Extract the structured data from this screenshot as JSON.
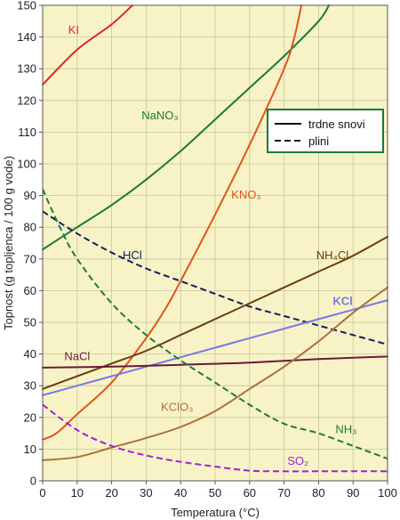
{
  "chart_data": {
    "type": "line",
    "xlabel": "Temperatura (°C)",
    "ylabel": "Topnost (g topljenca / 100 g vode)",
    "xlim": [
      0,
      100
    ],
    "ylim": [
      0,
      150
    ],
    "x_ticks": [
      0,
      10,
      20,
      30,
      40,
      50,
      60,
      70,
      80,
      90,
      100
    ],
    "y_ticks": [
      0,
      10,
      20,
      30,
      40,
      50,
      60,
      70,
      80,
      90,
      100,
      110,
      120,
      130,
      140,
      150
    ],
    "background": "#f7f3c6",
    "grid": true,
    "legend": {
      "position": "upper-right",
      "entries": [
        {
          "label": "trdne snovi",
          "style": "solid"
        },
        {
          "label": "plini",
          "style": "dashed"
        }
      ]
    },
    "series": [
      {
        "name": "KI",
        "style": "solid",
        "color": "#e0242a",
        "points": [
          [
            0,
            125
          ],
          [
            10,
            136
          ],
          [
            20,
            144
          ],
          [
            26,
            150
          ]
        ]
      },
      {
        "name": "NaNO₃",
        "style": "solid",
        "color": "#1a7a3c",
        "points": [
          [
            0,
            73
          ],
          [
            10,
            80
          ],
          [
            20,
            87
          ],
          [
            30,
            95
          ],
          [
            40,
            104
          ],
          [
            50,
            114
          ],
          [
            60,
            124
          ],
          [
            70,
            134
          ],
          [
            80,
            145
          ],
          [
            83,
            150
          ]
        ]
      },
      {
        "name": "KNO₃",
        "style": "solid",
        "color": "#e0551b",
        "points": [
          [
            0,
            13
          ],
          [
            4,
            15
          ],
          [
            10,
            21
          ],
          [
            20,
            31
          ],
          [
            30,
            45
          ],
          [
            36,
            55
          ],
          [
            40,
            63
          ],
          [
            50,
            84
          ],
          [
            60,
            106
          ],
          [
            70,
            130
          ],
          [
            73,
            140
          ],
          [
            75,
            150
          ]
        ]
      },
      {
        "name": "HCl",
        "style": "dashed",
        "color": "#141e5c",
        "points": [
          [
            0,
            85
          ],
          [
            10,
            78
          ],
          [
            20,
            72
          ],
          [
            30,
            67
          ],
          [
            40,
            63
          ],
          [
            50,
            59
          ],
          [
            60,
            55
          ],
          [
            70,
            52
          ],
          [
            80,
            49
          ],
          [
            90,
            46
          ],
          [
            100,
            43
          ]
        ]
      },
      {
        "name": "NH₄Cl",
        "style": "solid",
        "color": "#6b3d0e",
        "points": [
          [
            0,
            29
          ],
          [
            10,
            33
          ],
          [
            20,
            37
          ],
          [
            30,
            41
          ],
          [
            40,
            46
          ],
          [
            50,
            51
          ],
          [
            60,
            56
          ],
          [
            70,
            61
          ],
          [
            80,
            66
          ],
          [
            90,
            71
          ],
          [
            100,
            77
          ]
        ]
      },
      {
        "name": "KCl",
        "style": "solid",
        "color": "#7a78e8",
        "points": [
          [
            0,
            27
          ],
          [
            10,
            30
          ],
          [
            20,
            33
          ],
          [
            30,
            36
          ],
          [
            40,
            39
          ],
          [
            50,
            42
          ],
          [
            60,
            45
          ],
          [
            70,
            48
          ],
          [
            80,
            51
          ],
          [
            90,
            54
          ],
          [
            100,
            57
          ]
        ]
      },
      {
        "name": "NaCl",
        "style": "solid",
        "color": "#6a1a3a",
        "points": [
          [
            0,
            35.7
          ],
          [
            20,
            36
          ],
          [
            40,
            36.6
          ],
          [
            60,
            37.3
          ],
          [
            80,
            38.4
          ],
          [
            100,
            39.2
          ]
        ]
      },
      {
        "name": "NH₃",
        "style": "dashed",
        "color": "#1f7a3c",
        "points": [
          [
            0,
            92
          ],
          [
            5,
            80
          ],
          [
            10,
            70
          ],
          [
            20,
            56
          ],
          [
            30,
            46
          ],
          [
            40,
            38
          ],
          [
            50,
            31
          ],
          [
            60,
            24
          ],
          [
            70,
            18
          ],
          [
            80,
            15
          ],
          [
            90,
            11
          ],
          [
            100,
            7
          ]
        ]
      },
      {
        "name": "KClO₃",
        "style": "solid",
        "color": "#a8723c",
        "points": [
          [
            0,
            6.5
          ],
          [
            10,
            7.5
          ],
          [
            20,
            10.5
          ],
          [
            30,
            13.5
          ],
          [
            40,
            17
          ],
          [
            50,
            22
          ],
          [
            60,
            29
          ],
          [
            70,
            36
          ],
          [
            80,
            44
          ],
          [
            90,
            53
          ],
          [
            100,
            61
          ]
        ]
      },
      {
        "name": "SO₂",
        "style": "dashed",
        "color": "#a020d8",
        "points": [
          [
            0,
            24
          ],
          [
            10,
            16
          ],
          [
            20,
            11
          ],
          [
            30,
            8
          ],
          [
            40,
            6
          ],
          [
            50,
            4.5
          ],
          [
            60,
            3.2
          ],
          [
            70,
            3
          ],
          [
            80,
            3
          ],
          [
            90,
            3
          ],
          [
            100,
            3
          ]
        ]
      }
    ]
  }
}
